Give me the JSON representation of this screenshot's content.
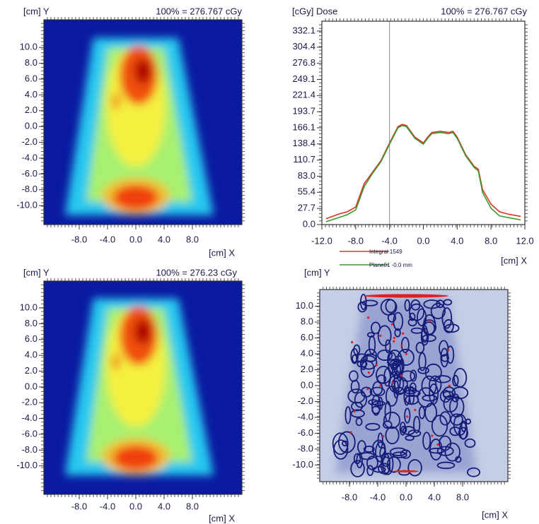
{
  "chart_data": [
    {
      "type": "heatmap",
      "colormap": "jet",
      "y_label": "[cm] Y",
      "x_label": "[cm] X",
      "annotation": "100% = 276.767 cGy",
      "xlim": [
        -13,
        15
      ],
      "ylim": [
        -12.4,
        13.5
      ],
      "xticks": [
        {
          "value": -8,
          "label": "-8.0"
        },
        {
          "value": -4,
          "label": "-4.0"
        },
        {
          "value": 0,
          "label": "0.0"
        },
        {
          "value": 4,
          "label": "4.0"
        },
        {
          "value": 8,
          "label": "8.0"
        }
      ],
      "yticks": [
        {
          "value": 10,
          "label": "10.0"
        },
        {
          "value": 8,
          "label": "8.0"
        },
        {
          "value": 6,
          "label": "6.0"
        },
        {
          "value": 4,
          "label": "4.0"
        },
        {
          "value": 2,
          "label": "2.0"
        },
        {
          "value": 0,
          "label": "0.0"
        },
        {
          "value": -2,
          "label": "-2.0"
        },
        {
          "value": -4,
          "label": "-4.0"
        },
        {
          "value": -6,
          "label": "-6.0"
        },
        {
          "value": -8,
          "label": "-8.0"
        },
        {
          "value": -10,
          "label": "-10.0"
        }
      ]
    },
    {
      "type": "line",
      "y_label": "[cGy] Dose",
      "x_label": "[cm] X",
      "annotation": "100% = 276.767 cGy",
      "xlim": [
        -12,
        12
      ],
      "ylim": [
        0,
        349
      ],
      "xticks": [
        {
          "value": -12,
          "label": "-12.0"
        },
        {
          "value": -8,
          "label": "-8.0"
        },
        {
          "value": -4,
          "label": "-4.0"
        },
        {
          "value": 0,
          "label": "0.0"
        },
        {
          "value": 4,
          "label": "4.0"
        },
        {
          "value": 8,
          "label": "8.0"
        },
        {
          "value": 12,
          "label": "12.0"
        }
      ],
      "yticks": [
        {
          "value": 0,
          "label": "0.0"
        },
        27.7,
        55.4,
        {
          "value": 83,
          "label": "83.0"
        },
        110.7,
        138.4,
        166.1,
        193.7,
        221.4,
        249.1,
        276.8,
        304.4,
        332.1
      ],
      "vline": -4,
      "x": [
        -11.5,
        -10,
        -9,
        -8,
        -7,
        -6,
        -5,
        -4,
        -3,
        -2.5,
        -2,
        -1,
        0,
        0.5,
        1,
        2,
        3,
        3.5,
        4,
        5,
        6,
        6.5,
        7,
        8,
        9,
        10,
        11.5
      ],
      "series": [
        {
          "name": "Integral 1549",
          "color": "#e03020",
          "values": [
            10,
            18,
            22,
            30,
            70,
            90,
            110,
            140,
            168,
            172,
            170,
            150,
            140,
            150,
            158,
            160,
            158,
            160,
            150,
            120,
            100,
            95,
            60,
            35,
            22,
            18,
            14
          ]
        },
        {
          "name": "Plane01 -0.0 mm",
          "color": "#3a9a30",
          "values": [
            5,
            12,
            17,
            25,
            65,
            88,
            108,
            138,
            166,
            170,
            168,
            148,
            138,
            148,
            156,
            158,
            156,
            158,
            148,
            118,
            98,
            92,
            55,
            28,
            15,
            12,
            8
          ]
        }
      ]
    },
    {
      "type": "heatmap",
      "colormap": "jet",
      "y_label": "[cm] Y",
      "x_label": "[cm] X",
      "annotation": "100% = 276.23 cGy",
      "xlim": [
        -13,
        15
      ],
      "ylim": [
        -13.6,
        13.4
      ],
      "xticks": [
        {
          "value": -8,
          "label": "-8.0"
        },
        {
          "value": -4,
          "label": "-4.0"
        },
        {
          "value": 0,
          "label": "0.0"
        },
        {
          "value": 4,
          "label": "4.0"
        },
        {
          "value": 8,
          "label": "8.0"
        }
      ],
      "yticks": [
        {
          "value": 10,
          "label": "10.0"
        },
        {
          "value": 8,
          "label": "8.0"
        },
        {
          "value": 6,
          "label": "6.0"
        },
        {
          "value": 4,
          "label": "4.0"
        },
        {
          "value": 2,
          "label": "2.0"
        },
        {
          "value": 0,
          "label": "0.0"
        },
        {
          "value": -2,
          "label": "-2.0"
        },
        {
          "value": -4,
          "label": "-4.0"
        },
        {
          "value": -6,
          "label": "-6.0"
        },
        {
          "value": -8,
          "label": "-8.0"
        },
        {
          "value": -10,
          "label": "-10.0"
        }
      ]
    },
    {
      "type": "heatmap",
      "colormap": "gamma",
      "y_label": "[cm] Y",
      "x_label": "[cm] X",
      "xlim": [
        -12.2,
        14.4
      ],
      "ylim": [
        -12.1,
        12.1
      ],
      "xticks": [
        {
          "value": -8,
          "label": "-8.0"
        },
        {
          "value": -4,
          "label": "-4.0"
        },
        {
          "value": 0,
          "label": "0.0"
        },
        {
          "value": 4,
          "label": "4.0"
        },
        {
          "value": 8,
          "label": "8.0"
        }
      ],
      "yticks": [
        {
          "value": 10,
          "label": "10.0"
        },
        {
          "value": 8,
          "label": "8.0"
        },
        {
          "value": 6,
          "label": "6.0"
        },
        {
          "value": 4,
          "label": "4.0"
        },
        {
          "value": 2,
          "label": "2.0"
        },
        {
          "value": 0,
          "label": "0.0"
        },
        {
          "value": -2,
          "label": "-2.0"
        },
        {
          "value": -4,
          "label": "-4.0"
        },
        {
          "value": -6,
          "label": "-6.0"
        },
        {
          "value": -8,
          "label": "-8.0"
        },
        {
          "value": -10,
          "label": "-10.0"
        }
      ]
    }
  ]
}
